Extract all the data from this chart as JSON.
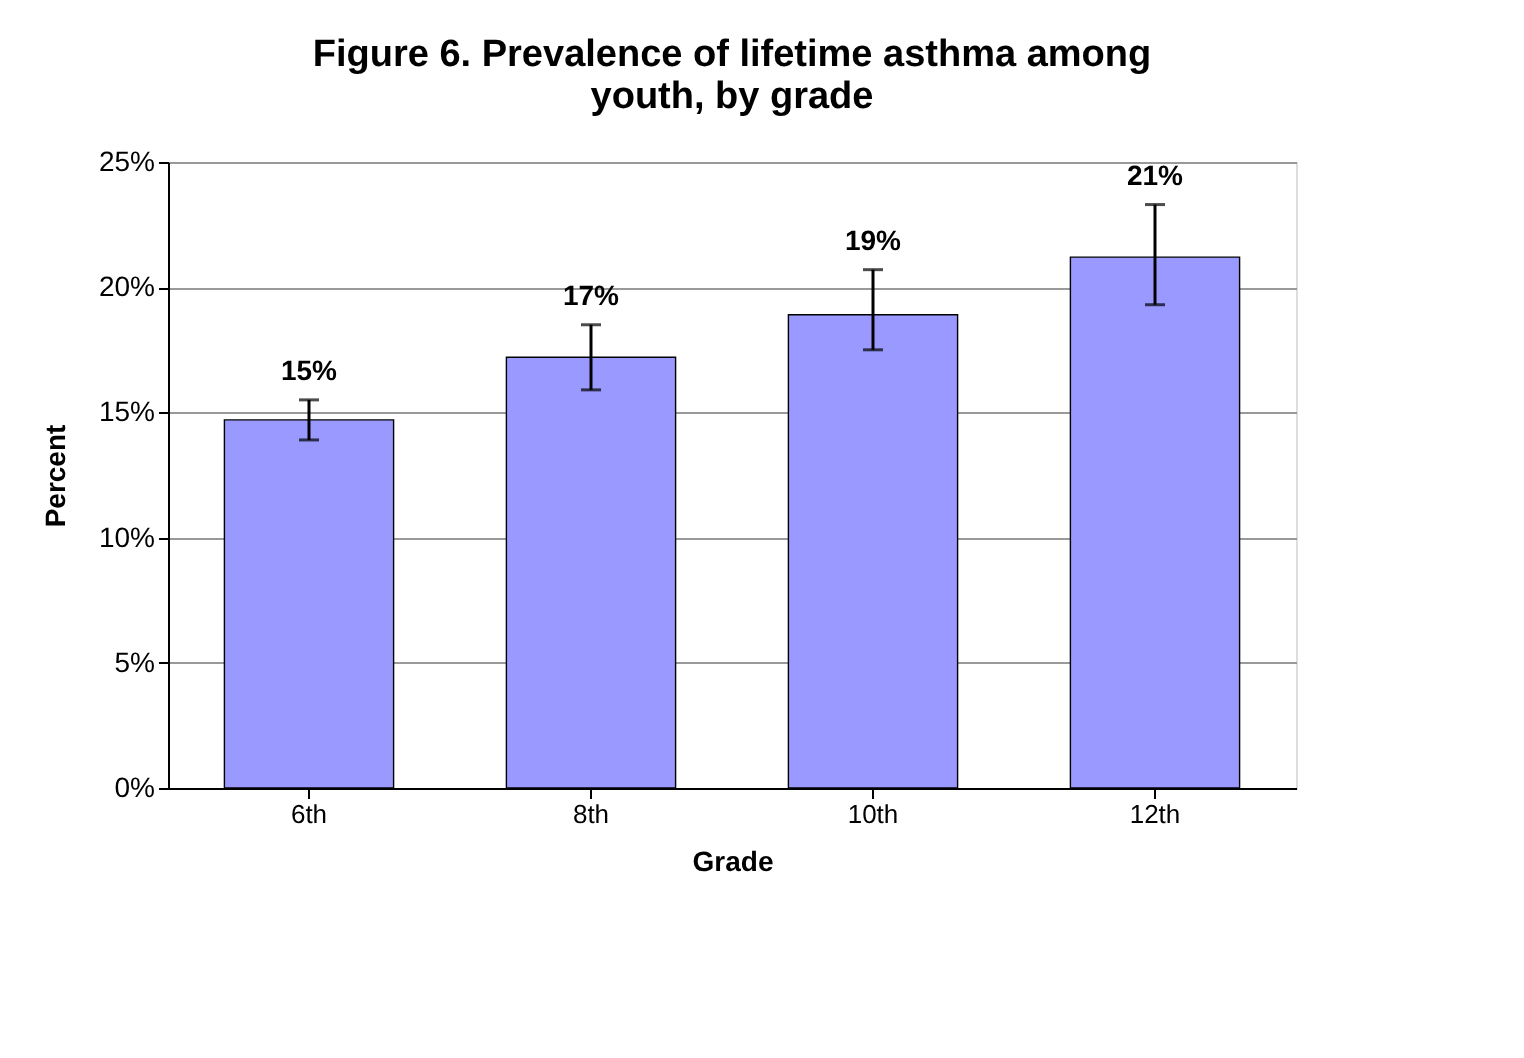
{
  "chart_data": {
    "type": "bar",
    "title": "Figure 6. Prevalence of lifetime asthma among youth, by grade",
    "xlabel": "Grade",
    "ylabel": "Percent",
    "categories": [
      "6th",
      "8th",
      "10th",
      "12th"
    ],
    "values": [
      14.7,
      17.2,
      18.9,
      21.2
    ],
    "errors": [
      [
        13.9,
        15.5
      ],
      [
        15.9,
        18.5
      ],
      [
        17.5,
        20.7
      ],
      [
        19.3,
        23.3
      ]
    ],
    "value_labels": [
      "15%",
      "17%",
      "19%",
      "21%"
    ],
    "color": "#9999ff",
    "ylim": [
      0,
      25
    ],
    "yticks": [
      {
        "value": 0,
        "label": "0%"
      },
      {
        "value": 5,
        "label": "5%"
      },
      {
        "value": 10,
        "label": "10%"
      },
      {
        "value": 15,
        "label": "15%"
      },
      {
        "value": 20,
        "label": "20%"
      },
      {
        "value": 25,
        "label": "25%"
      }
    ],
    "grid": "y"
  }
}
